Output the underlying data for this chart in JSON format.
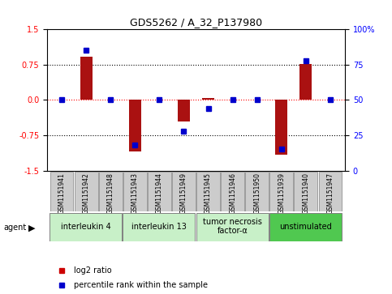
{
  "title": "GDS5262 / A_32_P137980",
  "samples": [
    "GSM1151941",
    "GSM1151942",
    "GSM1151948",
    "GSM1151943",
    "GSM1151944",
    "GSM1151949",
    "GSM1151945",
    "GSM1151946",
    "GSM1151950",
    "GSM1151939",
    "GSM1151940",
    "GSM1151947"
  ],
  "log2_ratio": [
    0.0,
    0.92,
    0.0,
    -1.1,
    0.0,
    -0.45,
    0.05,
    0.0,
    0.0,
    -1.17,
    0.77,
    0.0
  ],
  "percentile_rank": [
    50,
    85,
    50,
    18,
    50,
    28,
    44,
    50,
    50,
    15,
    78,
    50
  ],
  "agents": [
    {
      "label": "interleukin 4",
      "start": 0,
      "end": 3,
      "color": "#c8f0c8"
    },
    {
      "label": "interleukin 13",
      "start": 3,
      "end": 6,
      "color": "#c8f0c8"
    },
    {
      "label": "tumor necrosis\nfactor-α",
      "start": 6,
      "end": 9,
      "color": "#c8f0c8"
    },
    {
      "label": "unstimulated",
      "start": 9,
      "end": 12,
      "color": "#50c850"
    }
  ],
  "ylim": [
    -1.5,
    1.5
  ],
  "yticks_left": [
    -1.5,
    -0.75,
    0.0,
    0.75,
    1.5
  ],
  "yticks_right": [
    0,
    25,
    50,
    75,
    100
  ],
  "bar_color": "#aa1111",
  "dot_color": "#0000cc",
  "bg_color": "#ffffff",
  "plot_bg": "#ffffff",
  "sample_box_color": "#cccccc",
  "legend_log2_color": "#cc0000",
  "legend_pct_color": "#0000cc"
}
